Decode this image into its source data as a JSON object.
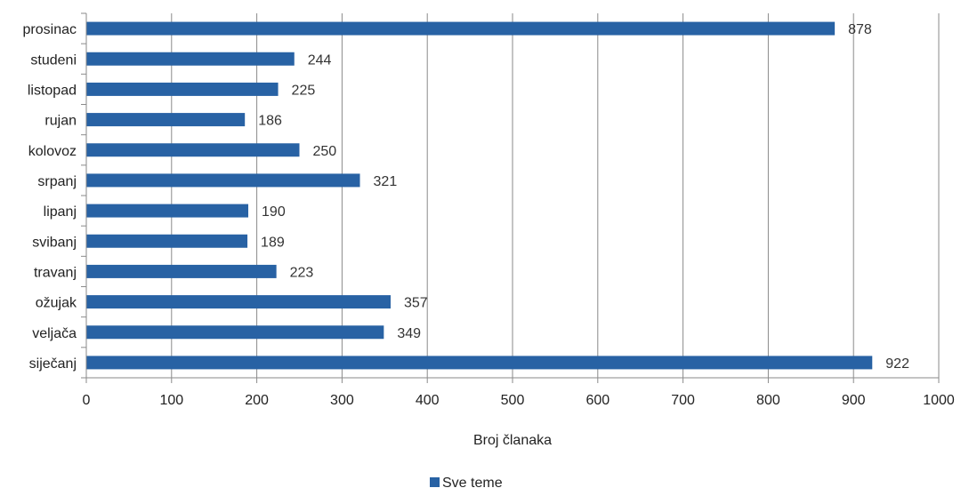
{
  "chart_data": {
    "type": "bar",
    "orientation": "horizontal",
    "categories": [
      "prosinac",
      "studeni",
      "listopad",
      "rujan",
      "kolovoz",
      "srpanj",
      "lipanj",
      "svibanj",
      "travanj",
      "ožujak",
      "veljača",
      "siječanj"
    ],
    "series": [
      {
        "name": "Sve teme",
        "values": [
          878,
          244,
          225,
          186,
          250,
          321,
          190,
          189,
          223,
          357,
          349,
          922
        ]
      }
    ],
    "xlabel": "Broj članaka",
    "ylabel": "",
    "xlim": [
      0,
      1000
    ],
    "x_ticks": [
      0,
      100,
      200,
      300,
      400,
      500,
      600,
      700,
      800,
      900,
      1000
    ],
    "grid": "vertical",
    "legend_position": "bottom",
    "bar_color": "#2862a4"
  }
}
